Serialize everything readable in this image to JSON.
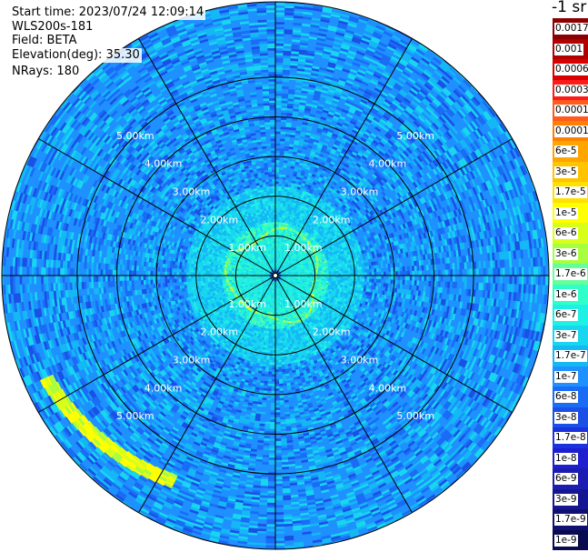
{
  "info": {
    "start_time": "Start time: 2023/07/24 12:09:14",
    "instrument": "WLS200s-181",
    "field": "Field: BETA",
    "elevation": "Elevation(deg): 35.30",
    "nrays": "NRays: 180"
  },
  "colorbar": {
    "title": "-1 sr",
    "entries": [
      {
        "label": "0.0017",
        "color": "#8b0000"
      },
      {
        "label": "0.001",
        "color": "#b00000"
      },
      {
        "label": "0.0006",
        "color": "#d80000"
      },
      {
        "label": "0.0003",
        "color": "#ff1a1a"
      },
      {
        "label": "0.00017",
        "color": "#ff5a1f"
      },
      {
        "label": "0.0001",
        "color": "#ff7f00"
      },
      {
        "label": "6e-5",
        "color": "#ffa500"
      },
      {
        "label": "3e-5",
        "color": "#ffc300"
      },
      {
        "label": "1.7e-5",
        "color": "#ffe000"
      },
      {
        "label": "1e-5",
        "color": "#ffff00"
      },
      {
        "label": "6e-6",
        "color": "#d8ff1a"
      },
      {
        "label": "3e-6",
        "color": "#a8ff40"
      },
      {
        "label": "1.7e-6",
        "color": "#66ff99"
      },
      {
        "label": "1e-6",
        "color": "#2fffc8"
      },
      {
        "label": "6e-7",
        "color": "#1ef0e6"
      },
      {
        "label": "3e-7",
        "color": "#18d6f0"
      },
      {
        "label": "1.7e-7",
        "color": "#14b8f5"
      },
      {
        "label": "1e-7",
        "color": "#1e90ff"
      },
      {
        "label": "6e-8",
        "color": "#1a6cf5"
      },
      {
        "label": "3e-8",
        "color": "#1a50e6"
      },
      {
        "label": "1.7e-8",
        "color": "#1a33dd"
      },
      {
        "label": "1e-8",
        "color": "#1f1fd0"
      },
      {
        "label": "6e-9",
        "color": "#1c1cb0"
      },
      {
        "label": "3e-9",
        "color": "#161690"
      },
      {
        "label": "1.7e-9",
        "color": "#101070"
      },
      {
        "label": "1e-9",
        "color": "#0a0a50"
      }
    ]
  },
  "chart_data": {
    "type": "heatmap",
    "projection": "polar (PPI scan)",
    "field": "BETA",
    "units": "-1 sr",
    "range_rings": [
      "1.00km",
      "2.00km",
      "3.00km",
      "4.00km",
      "5.00km"
    ],
    "range_ring_values_km": [
      1,
      2,
      3,
      4,
      5
    ],
    "max_range_km": 6.9,
    "n_rays": 180,
    "spoke_angles_deg": [
      0,
      30,
      60,
      90,
      120,
      150,
      180,
      210,
      240,
      270,
      300,
      330
    ],
    "colorscale": "log",
    "value_range": [
      1e-09,
      0.0017
    ],
    "background_level": "1e-8 to 3e-7",
    "near_ring_level": "1e-6 to 1e-5",
    "near_ring_radius_km": 1.1,
    "high_region": {
      "sector": "south-west",
      "radius_km": [
        5.4,
        6.5
      ],
      "level": "1e-5 to 3e-5"
    },
    "colors": {
      "background": "#1e90ff",
      "mid": "#18d6f0",
      "near": "#2fffc8",
      "high": "#ffff00"
    }
  }
}
